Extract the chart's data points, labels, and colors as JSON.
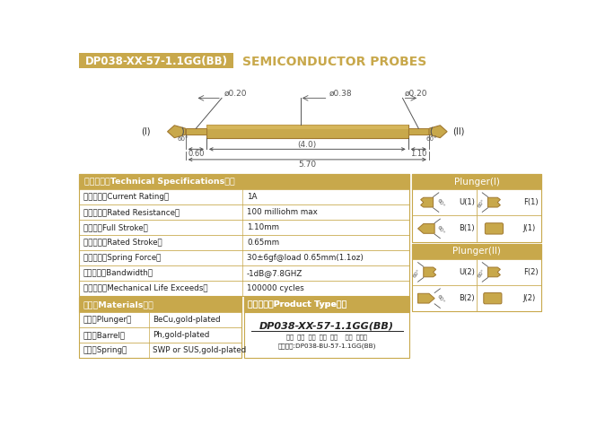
{
  "title_box_text": "DP038-XX-57-1.1GG(BB)",
  "title_main": "SEMICONDUCTOR PROBES",
  "title_box_color": "#C8A84B",
  "background_color": "#FFFFFF",
  "gold_color": "#C8A84B",
  "gold_dark": "#A07830",
  "spec_header": "技术要求（Technical Specifications）：",
  "spec_rows": [
    [
      "额定电流（Current Rating）",
      "1A"
    ],
    [
      "额定电阻（Rated Resistance）",
      "100 milliohm max"
    ],
    [
      "满行程（Full Stroke）",
      "1.10mm"
    ],
    [
      "额定行程（Rated Stroke）",
      "0.65mm"
    ],
    [
      "额定弹力（Spring Force）",
      "30±6gf@load 0.65mm(1.1oz)"
    ],
    [
      "频率带宽（Bandwidth）",
      "-1dB@7.8GHZ"
    ],
    [
      "测试寿命（Mechanical Life Exceeds）",
      "100000 cycles"
    ]
  ],
  "mat_header": "材质（Materials）：",
  "mat_rows": [
    [
      "针头（Plunger）",
      "BeCu,gold-plated"
    ],
    [
      "针管（Barrel）",
      "Ph,gold-plated"
    ],
    [
      "弹簧（Spring）",
      "SWP or SUS,gold-plated"
    ]
  ],
  "prod_header": "成品型号（Product Type）：",
  "prod_model": "DP038-XX-57-1.1GG(BB)",
  "prod_sub": "系列  规格  头型  总长  弹力    镀金  针头规",
  "prod_example": "订购举例:DP038-BU-57-1.1GG(BB)",
  "plunger1_header": "Plunger(I)",
  "plunger2_header": "Plunger(II)",
  "pl1_cells": [
    [
      "U(1)",
      "F(1)"
    ],
    [
      "B(1)",
      "J(1)"
    ]
  ],
  "pl2_cells": [
    [
      "U(2)",
      "F(2)"
    ],
    [
      "B(2)",
      "J(2)"
    ]
  ]
}
